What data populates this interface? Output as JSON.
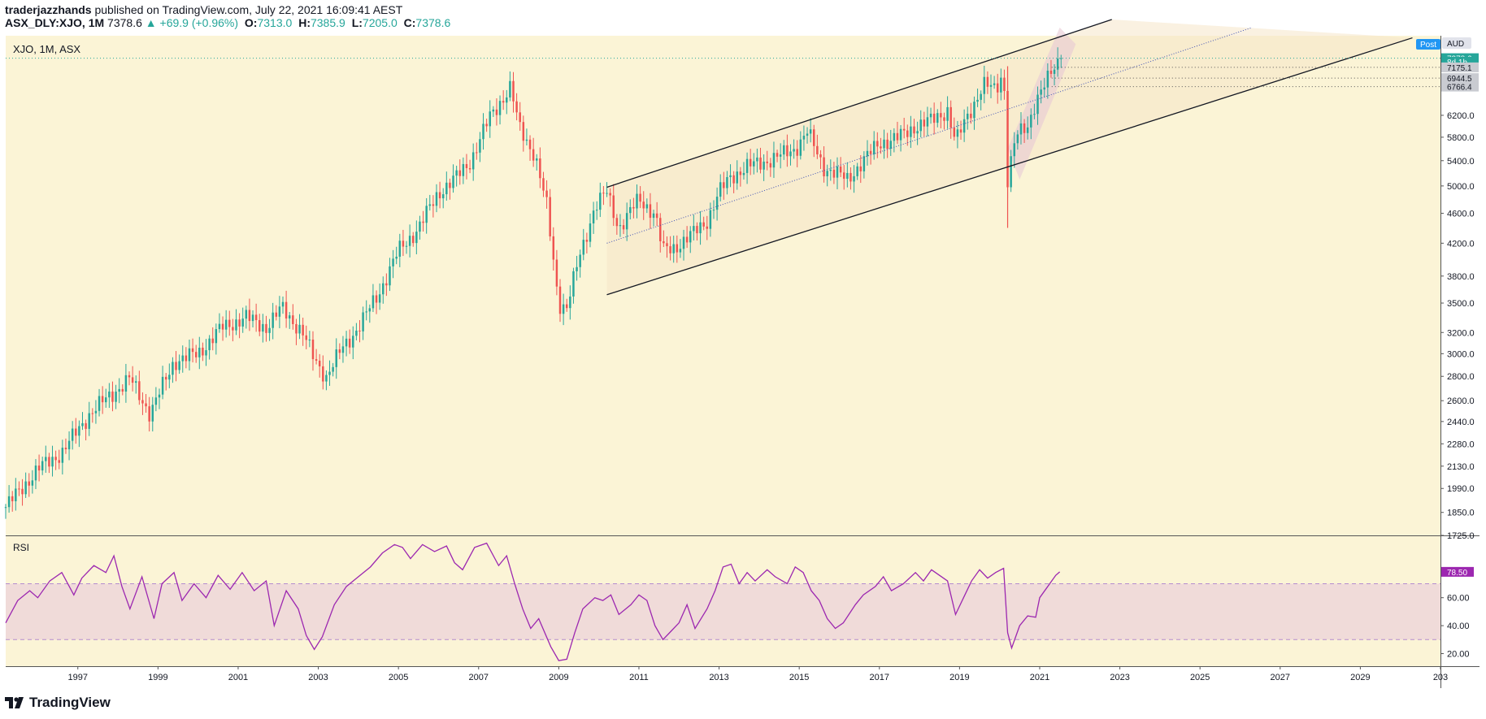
{
  "header": {
    "author": "traderjazzhands",
    "published_text": "published on TradingView.com, July 22, 2021 16:09:41 AEST",
    "symbol": "ASX_DLY:XJO, 1M",
    "last": "7378.6",
    "change": "▲ +69.9 (+0.96%)",
    "o_label": "O:",
    "o_value": "7313.0",
    "h_label": "H:",
    "h_value": "7385.9",
    "l_label": "L:",
    "l_value": "7205.0",
    "c_label": "C:",
    "c_value": "7378.6"
  },
  "footer": {
    "brand": "TradingView",
    "logo_icon": "tradingview-logo-icon"
  },
  "colors": {
    "background": "#fbf4d6",
    "up": "#26a69a",
    "down": "#ef5350",
    "rsi_line": "#9c27b0",
    "rsi_band": "#f0dbd9"
  },
  "chart_data": [
    {
      "type": "candlestick",
      "title": "XJO, 1M, ASX",
      "scale": "log",
      "currency": "AUD",
      "y_ticks": [
        "1725.0",
        "1850.0",
        "1990.0",
        "2130.0",
        "2280.0",
        "2440.0",
        "2600.0",
        "2800.0",
        "3000.0",
        "3200.0",
        "3500.0",
        "3800.0",
        "4200.0",
        "4600.0",
        "5000.0",
        "5400.0",
        "5800.0",
        "6200.0"
      ],
      "price_labels": [
        {
          "text": "7378.6",
          "value": 7378.6,
          "kind": "last"
        },
        {
          "text": "8d 1h",
          "value": 7300,
          "kind": "countdown"
        },
        {
          "text": "7175.1",
          "value": 7175.1,
          "kind": "level"
        },
        {
          "text": "6944.5",
          "value": 6944.5,
          "kind": "level"
        },
        {
          "text": "6766.4",
          "value": 6766.4,
          "kind": "level"
        }
      ],
      "badge": "Post",
      "x_ticks": [
        "1997",
        "1999",
        "2001",
        "2003",
        "2005",
        "2007",
        "2009",
        "2011",
        "2013",
        "2015",
        "2017",
        "2019",
        "2021",
        "2023",
        "2025",
        "2027",
        "2029",
        "203"
      ],
      "x_range": [
        1995.2,
        2031.0
      ],
      "y_range": [
        1725,
        7900
      ],
      "monthly_close_keypoints": [
        [
          1995.2,
          1880
        ],
        [
          1996.0,
          2110
        ],
        [
          1996.6,
          2220
        ],
        [
          1997.3,
          2500
        ],
        [
          1997.8,
          2640
        ],
        [
          1998.3,
          2780
        ],
        [
          1998.8,
          2500
        ],
        [
          1999.4,
          2930
        ],
        [
          2000.0,
          3000
        ],
        [
          2000.6,
          3250
        ],
        [
          2001.2,
          3350
        ],
        [
          2001.7,
          3250
        ],
        [
          2002.1,
          3450
        ],
        [
          2002.6,
          3200
        ],
        [
          2002.9,
          2950
        ],
        [
          2003.2,
          2800
        ],
        [
          2003.6,
          3050
        ],
        [
          2004.0,
          3250
        ],
        [
          2004.5,
          3600
        ],
        [
          2005.0,
          4100
        ],
        [
          2005.5,
          4400
        ],
        [
          2006.0,
          4900
        ],
        [
          2006.4,
          5100
        ],
        [
          2006.8,
          5400
        ],
        [
          2007.3,
          6200
        ],
        [
          2007.8,
          6750
        ],
        [
          2008.0,
          6000
        ],
        [
          2008.4,
          5500
        ],
        [
          2008.7,
          4700
        ],
        [
          2009.0,
          3500
        ],
        [
          2009.2,
          3450
        ],
        [
          2009.5,
          4000
        ],
        [
          2009.9,
          4700
        ],
        [
          2010.2,
          4900
        ],
        [
          2010.5,
          4400
        ],
        [
          2011.0,
          4800
        ],
        [
          2011.4,
          4600
        ],
        [
          2011.6,
          4100
        ],
        [
          2011.9,
          4150
        ],
        [
          2012.3,
          4300
        ],
        [
          2012.7,
          4500
        ],
        [
          2013.0,
          4900
        ],
        [
          2013.3,
          5150
        ],
        [
          2013.7,
          5300
        ],
        [
          2014.2,
          5400
        ],
        [
          2014.6,
          5500
        ],
        [
          2014.9,
          5600
        ],
        [
          2015.2,
          5900
        ],
        [
          2015.6,
          5300
        ],
        [
          2015.9,
          5200
        ],
        [
          2016.2,
          5100
        ],
        [
          2016.6,
          5400
        ],
        [
          2017.0,
          5700
        ],
        [
          2017.5,
          5800
        ],
        [
          2017.9,
          6000
        ],
        [
          2018.3,
          6100
        ],
        [
          2018.7,
          6300
        ],
        [
          2018.9,
          5700
        ],
        [
          2019.2,
          6200
        ],
        [
          2019.6,
          6800
        ],
        [
          2019.9,
          6700
        ],
        [
          2020.1,
          7100
        ],
        [
          2020.2,
          5100
        ],
        [
          2020.4,
          5800
        ],
        [
          2020.7,
          6000
        ],
        [
          2020.9,
          6500
        ],
        [
          2021.2,
          6900
        ],
        [
          2021.5,
          7378.6
        ]
      ],
      "channel_lines": [
        {
          "name": "upper",
          "from": [
            2010.2,
            4980
          ],
          "to": [
            2022.8,
            8300
          ],
          "style": "solid"
        },
        {
          "name": "lower",
          "from": [
            2010.2,
            3590
          ],
          "to": [
            2030.3,
            7850
          ],
          "style": "solid"
        },
        {
          "name": "mid",
          "from": [
            2010.2,
            4200
          ],
          "to": [
            2026.3,
            8100
          ],
          "style": "dotted"
        }
      ]
    },
    {
      "type": "line",
      "title": "RSI",
      "y_ticks": [
        "20.00",
        "40.00",
        "60.00"
      ],
      "band": [
        30,
        70
      ],
      "last_value_label": "78.50",
      "y_range": [
        11,
        104
      ],
      "points": [
        [
          1995.2,
          42
        ],
        [
          1995.5,
          58
        ],
        [
          1995.8,
          65
        ],
        [
          1996.0,
          60
        ],
        [
          1996.3,
          72
        ],
        [
          1996.6,
          78
        ],
        [
          1996.9,
          62
        ],
        [
          1997.1,
          74
        ],
        [
          1997.4,
          83
        ],
        [
          1997.7,
          78
        ],
        [
          1997.9,
          90
        ],
        [
          1998.1,
          68
        ],
        [
          1998.3,
          52
        ],
        [
          1998.6,
          75
        ],
        [
          1998.9,
          45
        ],
        [
          1999.1,
          70
        ],
        [
          1999.4,
          78
        ],
        [
          1999.6,
          58
        ],
        [
          1999.9,
          70
        ],
        [
          2000.2,
          60
        ],
        [
          2000.5,
          76
        ],
        [
          2000.8,
          66
        ],
        [
          2001.1,
          78
        ],
        [
          2001.4,
          65
        ],
        [
          2001.7,
          72
        ],
        [
          2001.9,
          40
        ],
        [
          2002.2,
          65
        ],
        [
          2002.5,
          52
        ],
        [
          2002.7,
          33
        ],
        [
          2002.9,
          23
        ],
        [
          2003.1,
          32
        ],
        [
          2003.4,
          55
        ],
        [
          2003.7,
          68
        ],
        [
          2004.0,
          75
        ],
        [
          2004.3,
          82
        ],
        [
          2004.6,
          92
        ],
        [
          2004.9,
          98
        ],
        [
          2005.1,
          96
        ],
        [
          2005.3,
          88
        ],
        [
          2005.6,
          98
        ],
        [
          2005.9,
          93
        ],
        [
          2006.2,
          97
        ],
        [
          2006.4,
          85
        ],
        [
          2006.6,
          80
        ],
        [
          2006.9,
          96
        ],
        [
          2007.2,
          99
        ],
        [
          2007.5,
          83
        ],
        [
          2007.7,
          90
        ],
        [
          2007.9,
          70
        ],
        [
          2008.1,
          52
        ],
        [
          2008.3,
          38
        ],
        [
          2008.5,
          45
        ],
        [
          2008.8,
          25
        ],
        [
          2009.0,
          15
        ],
        [
          2009.2,
          16
        ],
        [
          2009.4,
          35
        ],
        [
          2009.6,
          52
        ],
        [
          2009.9,
          60
        ],
        [
          2010.1,
          58
        ],
        [
          2010.3,
          62
        ],
        [
          2010.5,
          48
        ],
        [
          2010.8,
          55
        ],
        [
          2011.0,
          62
        ],
        [
          2011.2,
          58
        ],
        [
          2011.4,
          40
        ],
        [
          2011.6,
          30
        ],
        [
          2011.8,
          36
        ],
        [
          2012.0,
          42
        ],
        [
          2012.2,
          55
        ],
        [
          2012.4,
          38
        ],
        [
          2012.7,
          52
        ],
        [
          2012.9,
          65
        ],
        [
          2013.1,
          82
        ],
        [
          2013.3,
          84
        ],
        [
          2013.5,
          70
        ],
        [
          2013.7,
          78
        ],
        [
          2013.9,
          72
        ],
        [
          2014.2,
          80
        ],
        [
          2014.4,
          75
        ],
        [
          2014.7,
          70
        ],
        [
          2014.9,
          82
        ],
        [
          2015.1,
          78
        ],
        [
          2015.3,
          65
        ],
        [
          2015.5,
          58
        ],
        [
          2015.7,
          45
        ],
        [
          2015.9,
          38
        ],
        [
          2016.1,
          42
        ],
        [
          2016.4,
          55
        ],
        [
          2016.6,
          62
        ],
        [
          2016.9,
          68
        ],
        [
          2017.1,
          75
        ],
        [
          2017.3,
          65
        ],
        [
          2017.6,
          70
        ],
        [
          2017.9,
          78
        ],
        [
          2018.1,
          72
        ],
        [
          2018.3,
          80
        ],
        [
          2018.5,
          76
        ],
        [
          2018.7,
          72
        ],
        [
          2018.9,
          48
        ],
        [
          2019.1,
          60
        ],
        [
          2019.3,
          72
        ],
        [
          2019.5,
          80
        ],
        [
          2019.7,
          74
        ],
        [
          2019.9,
          78
        ],
        [
          2020.1,
          81
        ],
        [
          2020.2,
          35
        ],
        [
          2020.3,
          24
        ],
        [
          2020.5,
          40
        ],
        [
          2020.7,
          47
        ],
        [
          2020.9,
          46
        ],
        [
          2021.0,
          60
        ],
        [
          2021.2,
          68
        ],
        [
          2021.4,
          76
        ],
        [
          2021.5,
          78.5
        ]
      ]
    }
  ]
}
